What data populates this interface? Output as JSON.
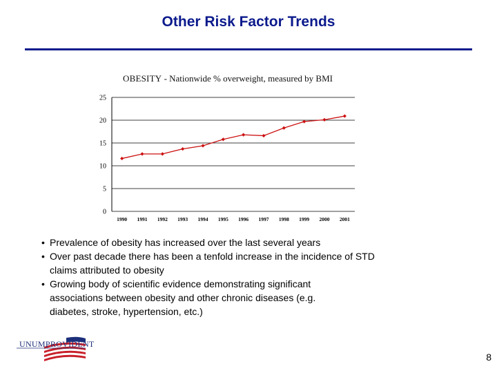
{
  "slide": {
    "title": "Other Risk Factor Trends",
    "page_number": "8"
  },
  "chart_data": {
    "type": "line",
    "title_bold": "OBESITY",
    "title_rest": " - Nationwide % overweight, measured by BMI",
    "categories": [
      "1990",
      "1991",
      "1992",
      "1993",
      "1994",
      "1995",
      "1996",
      "1997",
      "1998",
      "1999",
      "2000",
      "2001"
    ],
    "series": [
      {
        "values": [
          11.6,
          12.6,
          12.6,
          13.7,
          14.4,
          15.8,
          16.8,
          16.6,
          18.3,
          19.7,
          20.1,
          20.9
        ]
      }
    ],
    "y_ticks": [
      "0",
      "5",
      "10",
      "15",
      "20",
      "25"
    ],
    "ylim": [
      0,
      25
    ],
    "grid": true,
    "line_color": "#cc1111"
  },
  "bullets": [
    "Prevalence of obesity has increased over the last several years",
    "Over past decade there has been a tenfold increase in the incidence of STD\nclaims attributed to obesity",
    "Growing body of scientific evidence demonstrating significant\nassociations between obesity and other chronic diseases    (e.g.\ndiabetes, stroke, hypertension, etc.)"
  ],
  "logo": {
    "text": "UNUMPROVIDENT"
  }
}
